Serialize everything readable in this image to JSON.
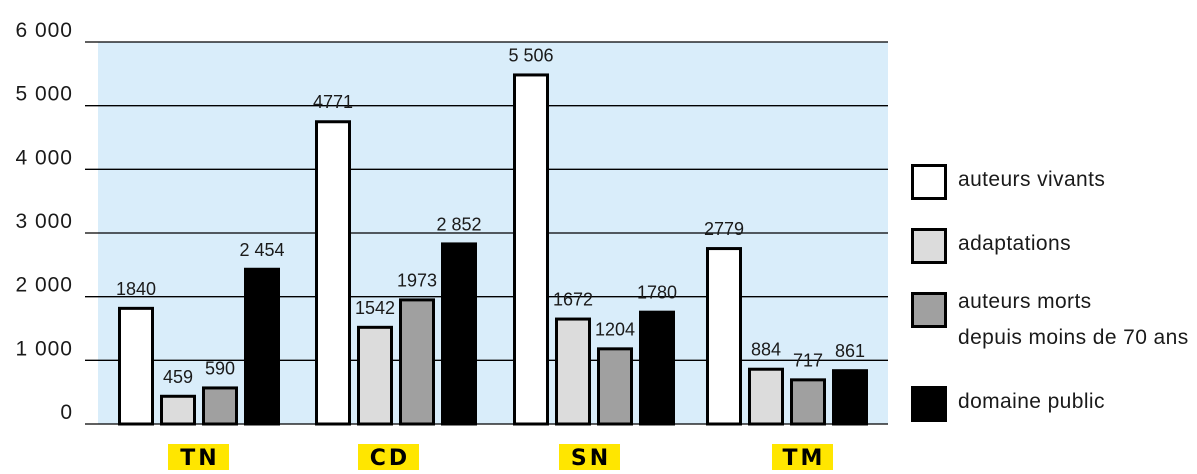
{
  "chart_data": {
    "type": "bar",
    "categories": [
      "TN",
      "CD",
      "SN",
      "TM"
    ],
    "ylim": [
      0,
      6000
    ],
    "yticks": [
      0,
      1000,
      2000,
      3000,
      4000,
      5000,
      6000
    ],
    "ytick_labels": [
      "0",
      "1 000",
      "2 000",
      "3 000",
      "4 000",
      "5 000",
      "6 000"
    ],
    "grid": true,
    "legend": "right",
    "series": [
      {
        "name": "auteurs vivants",
        "values": [
          1840,
          4771,
          5506,
          2779
        ],
        "labels": [
          "1840",
          "4771",
          "5 506",
          "2779"
        ],
        "color": "#ffffff"
      },
      {
        "name": "adaptations",
        "values": [
          459,
          1542,
          1672,
          884
        ],
        "labels": [
          "459",
          "1542",
          "1672",
          "884"
        ],
        "color": "#dcdcdc"
      },
      {
        "name": [
          "auteurs morts",
          "depuis moins de 70 ans"
        ],
        "values": [
          590,
          1973,
          1204,
          717
        ],
        "labels": [
          "590",
          "1973",
          "1204",
          "717"
        ],
        "color": "#a0a0a0"
      },
      {
        "name": "domaine public",
        "values": [
          2454,
          2852,
          1780,
          861
        ],
        "labels": [
          "2 454",
          "2 852",
          "1780",
          "861"
        ],
        "color": "#000000"
      }
    ],
    "colors": {
      "plot_background": "#d9edfa",
      "gridline": "#000000",
      "bar_outline": "#000000",
      "category_highlight": "#ffe600"
    }
  }
}
